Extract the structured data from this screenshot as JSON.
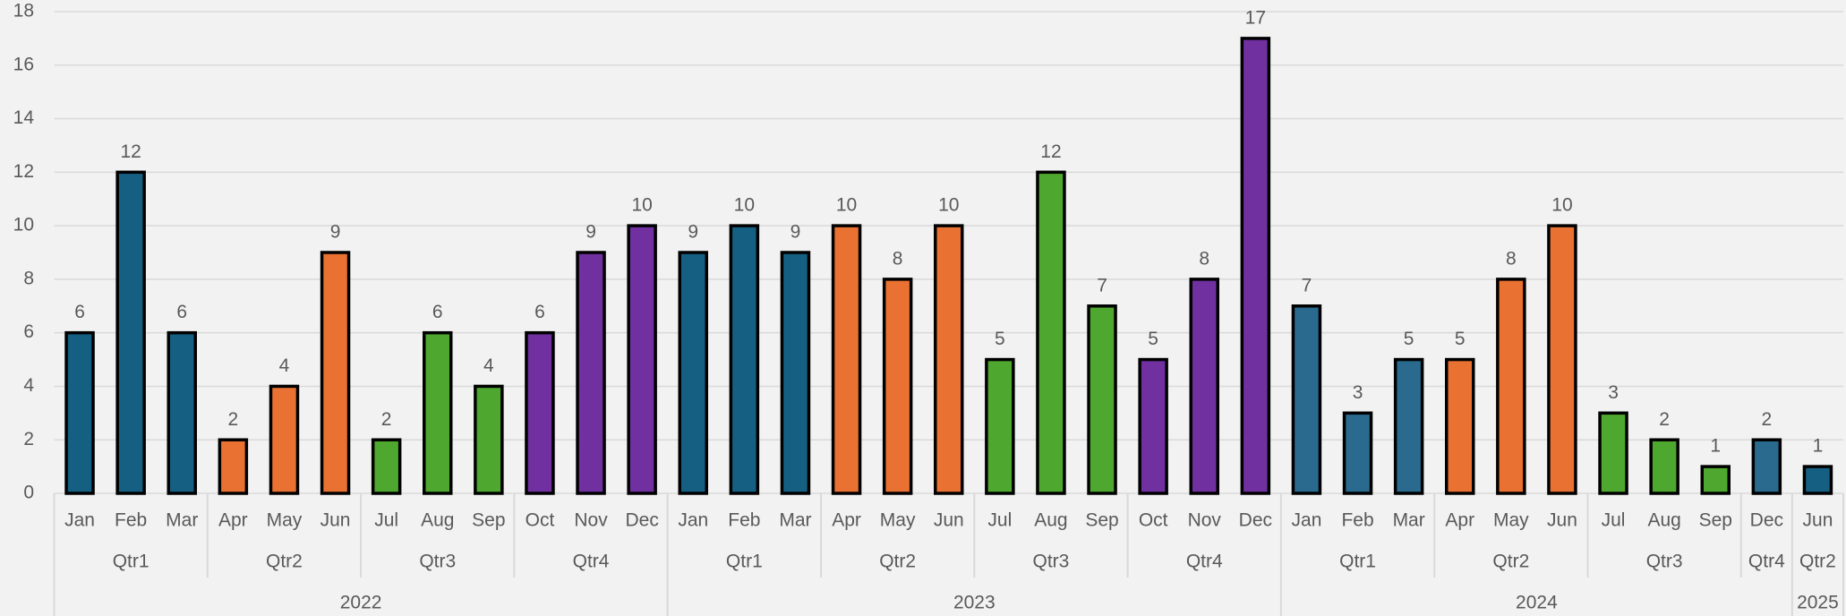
{
  "chart_data": {
    "type": "bar",
    "ylim": [
      0,
      18
    ],
    "yticks": [
      0,
      2,
      4,
      6,
      8,
      10,
      12,
      14,
      16,
      18
    ],
    "grid": true,
    "years": [
      {
        "label": "2022",
        "quarters": [
          {
            "label": "Qtr1",
            "color": "#156082",
            "months": [
              {
                "label": "Jan",
                "value": 6
              },
              {
                "label": "Feb",
                "value": 12
              },
              {
                "label": "Mar",
                "value": 6
              }
            ]
          },
          {
            "label": "Qtr2",
            "color": "#e97132",
            "months": [
              {
                "label": "Apr",
                "value": 2
              },
              {
                "label": "May",
                "value": 4
              },
              {
                "label": "Jun",
                "value": 9
              }
            ]
          },
          {
            "label": "Qtr3",
            "color": "#4ea72e",
            "months": [
              {
                "label": "Jul",
                "value": 2
              },
              {
                "label": "Aug",
                "value": 6
              },
              {
                "label": "Sep",
                "value": 4
              }
            ]
          },
          {
            "label": "Qtr4",
            "color": "#7030a0",
            "months": [
              {
                "label": "Oct",
                "value": 6
              },
              {
                "label": "Nov",
                "value": 9
              },
              {
                "label": "Dec",
                "value": 10
              }
            ]
          }
        ]
      },
      {
        "label": "2023",
        "quarters": [
          {
            "label": "Qtr1",
            "color": "#156082",
            "months": [
              {
                "label": "Jan",
                "value": 9
              },
              {
                "label": "Feb",
                "value": 10
              },
              {
                "label": "Mar",
                "value": 9
              }
            ]
          },
          {
            "label": "Qtr2",
            "color": "#e97132",
            "months": [
              {
                "label": "Apr",
                "value": 10
              },
              {
                "label": "May",
                "value": 8
              },
              {
                "label": "Jun",
                "value": 10
              }
            ]
          },
          {
            "label": "Qtr3",
            "color": "#4ea72e",
            "months": [
              {
                "label": "Jul",
                "value": 5
              },
              {
                "label": "Aug",
                "value": 12
              },
              {
                "label": "Sep",
                "value": 7
              }
            ]
          },
          {
            "label": "Qtr4",
            "color": "#7030a0",
            "months": [
              {
                "label": "Oct",
                "value": 5
              },
              {
                "label": "Nov",
                "value": 8
              },
              {
                "label": "Dec",
                "value": 17
              }
            ]
          }
        ]
      },
      {
        "label": "2024",
        "quarters": [
          {
            "label": "Qtr1",
            "color": "#2a6a8e",
            "months": [
              {
                "label": "Jan",
                "value": 7
              },
              {
                "label": "Feb",
                "value": 3
              },
              {
                "label": "Mar",
                "value": 5
              }
            ]
          },
          {
            "label": "Qtr2",
            "color": "#e97132",
            "months": [
              {
                "label": "Apr",
                "value": 5
              },
              {
                "label": "May",
                "value": 8
              },
              {
                "label": "Jun",
                "value": 10
              }
            ]
          },
          {
            "label": "Qtr3",
            "color": "#4ea72e",
            "months": [
              {
                "label": "Jul",
                "value": 3
              },
              {
                "label": "Aug",
                "value": 2
              },
              {
                "label": "Sep",
                "value": 1
              }
            ]
          },
          {
            "label": "Qtr4",
            "color": "#2a6a8e",
            "months": [
              {
                "label": "Dec",
                "value": 2
              }
            ]
          }
        ]
      },
      {
        "label": "2025",
        "quarters": [
          {
            "label": "Qtr2",
            "color": "#156082",
            "months": [
              {
                "label": "Jun",
                "value": 1
              }
            ]
          }
        ]
      }
    ]
  }
}
